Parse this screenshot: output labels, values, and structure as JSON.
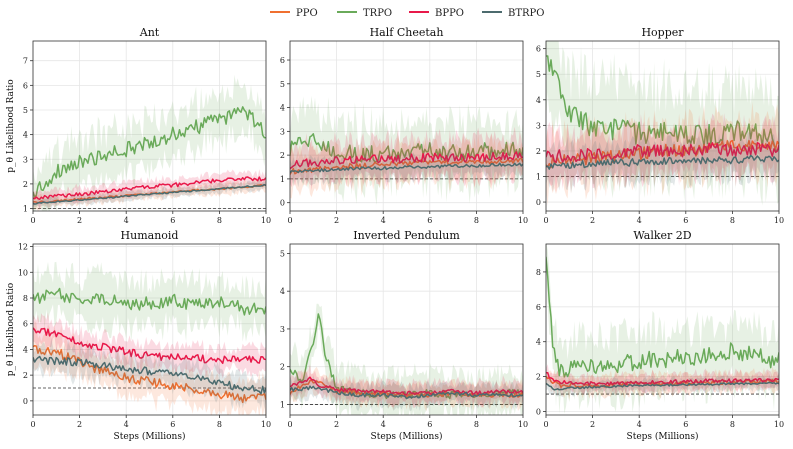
{
  "colors": {
    "PPO": "#f07030",
    "TRPO": "#6aaa5a",
    "BPPO": "#e8194a",
    "BTRPO": "#4c6b6e",
    "grid": "#e6e6e6",
    "axis": "#333333",
    "baseline": "#333333"
  },
  "legend": {
    "position": "top-center",
    "entries": [
      "PPO",
      "TRPO",
      "BPPO",
      "BTRPO"
    ]
  },
  "chart_data": [
    {
      "type": "line",
      "title": "Ant",
      "xlabel": "",
      "ylabel": "p_θ Likelihood Ratio",
      "xlim": [
        0,
        10
      ],
      "ylim": [
        0.9,
        7.8
      ],
      "xticks": [
        0,
        2,
        4,
        6,
        8,
        10
      ],
      "yticks": [
        1,
        2,
        3,
        4,
        5,
        6,
        7
      ],
      "baseline": 1,
      "x": [
        0,
        1,
        2,
        3,
        4,
        5,
        6,
        7,
        8,
        9,
        10
      ],
      "series": [
        {
          "name": "PPO",
          "values": [
            1.25,
            1.3,
            1.38,
            1.45,
            1.52,
            1.6,
            1.67,
            1.74,
            1.8,
            1.87,
            1.95
          ],
          "band": 0.25,
          "noise": 0.04
        },
        {
          "name": "TRPO",
          "values": [
            1.6,
            2.5,
            2.85,
            3.1,
            3.4,
            3.7,
            4.0,
            4.3,
            4.6,
            5.0,
            4.1
          ],
          "band": 1.1,
          "noise": 0.3
        },
        {
          "name": "BPPO",
          "values": [
            1.4,
            1.5,
            1.58,
            1.68,
            1.78,
            1.88,
            1.95,
            2.05,
            2.15,
            2.2,
            2.2
          ],
          "band": 0.3,
          "noise": 0.08
        },
        {
          "name": "BTRPO",
          "values": [
            1.2,
            1.28,
            1.35,
            1.42,
            1.5,
            1.58,
            1.65,
            1.72,
            1.8,
            1.88,
            1.95
          ],
          "band": 0.2,
          "noise": 0.03
        }
      ]
    },
    {
      "type": "line",
      "title": "Half Cheetah",
      "xlabel": "",
      "ylabel": "",
      "xlim": [
        0,
        10
      ],
      "ylim": [
        -0.35,
        6.8
      ],
      "xticks": [
        0,
        2,
        4,
        6,
        8,
        10
      ],
      "yticks": [
        0,
        1,
        2,
        3,
        4,
        5,
        6
      ],
      "baseline": 1,
      "x": [
        0,
        1,
        2,
        3,
        4,
        5,
        6,
        7,
        8,
        9,
        10
      ],
      "series": [
        {
          "name": "PPO",
          "values": [
            1.3,
            1.4,
            1.5,
            1.55,
            1.6,
            1.65,
            1.7,
            1.7,
            1.75,
            1.75,
            1.8
          ],
          "band": 0.9,
          "noise": 0.12
        },
        {
          "name": "TRPO",
          "values": [
            2.3,
            2.6,
            2.2,
            2.0,
            2.1,
            2.1,
            2.2,
            2.1,
            2.2,
            2.2,
            2.2
          ],
          "band": 1.5,
          "noise": 0.35
        },
        {
          "name": "BPPO",
          "values": [
            1.6,
            1.7,
            1.75,
            1.8,
            1.85,
            1.85,
            1.9,
            1.9,
            1.9,
            1.95,
            1.95
          ],
          "band": 0.9,
          "noise": 0.18
        },
        {
          "name": "BTRPO",
          "values": [
            1.3,
            1.35,
            1.4,
            1.45,
            1.45,
            1.5,
            1.5,
            1.55,
            1.55,
            1.6,
            1.6
          ],
          "band": 0.5,
          "noise": 0.06
        }
      ]
    },
    {
      "type": "line",
      "title": "Hopper",
      "xlabel": "",
      "ylabel": "",
      "xlim": [
        0,
        10
      ],
      "ylim": [
        -0.35,
        6.3
      ],
      "xticks": [
        0,
        2,
        4,
        6,
        8,
        10
      ],
      "yticks": [
        0,
        1,
        2,
        3,
        4,
        5,
        6
      ],
      "baseline": 1,
      "x": [
        0,
        1,
        2,
        3,
        4,
        5,
        6,
        7,
        8,
        9,
        10
      ],
      "series": [
        {
          "name": "PPO",
          "values": [
            1.5,
            1.7,
            1.7,
            1.8,
            1.9,
            2.0,
            2.0,
            2.1,
            2.2,
            2.3,
            2.2
          ],
          "band": 1.2,
          "noise": 0.25
        },
        {
          "name": "TRPO",
          "values": [
            5.8,
            3.5,
            2.9,
            2.8,
            2.7,
            2.8,
            2.6,
            2.6,
            2.8,
            2.7,
            2.3
          ],
          "band": 2.0,
          "noise": 0.45
        },
        {
          "name": "BPPO",
          "values": [
            1.8,
            1.8,
            1.9,
            1.9,
            2.0,
            2.0,
            2.0,
            2.1,
            2.0,
            2.1,
            2.0
          ],
          "band": 1.0,
          "noise": 0.25
        },
        {
          "name": "BTRPO",
          "values": [
            1.4,
            1.45,
            1.5,
            1.55,
            1.55,
            1.6,
            1.6,
            1.65,
            1.65,
            1.7,
            1.7
          ],
          "band": 0.8,
          "noise": 0.15
        }
      ]
    },
    {
      "type": "line",
      "title": "Humanoid",
      "xlabel": "Steps (Millions)",
      "ylabel": "p_θ Likelihood Ratio",
      "xlim": [
        0,
        10
      ],
      "ylim": [
        -1.1,
        12.2
      ],
      "xticks": [
        0,
        2,
        4,
        6,
        8,
        10
      ],
      "yticks": [
        0,
        2,
        4,
        6,
        8,
        10,
        12
      ],
      "baseline": 1,
      "x": [
        0,
        1,
        2,
        3,
        4,
        5,
        6,
        7,
        8,
        9,
        10
      ],
      "series": [
        {
          "name": "PPO",
          "values": [
            4.0,
            3.8,
            3.0,
            2.3,
            1.8,
            1.5,
            1.2,
            0.9,
            0.5,
            0.2,
            0.3
          ],
          "band": 1.5,
          "noise": 0.35
        },
        {
          "name": "TRPO",
          "values": [
            8.0,
            8.3,
            7.9,
            8.0,
            7.5,
            7.6,
            7.8,
            7.4,
            7.8,
            7.2,
            7.0
          ],
          "band": 2.0,
          "noise": 0.5
        },
        {
          "name": "BPPO",
          "values": [
            5.5,
            5.2,
            4.5,
            4.2,
            3.8,
            3.5,
            3.4,
            3.3,
            3.2,
            3.2,
            3.2
          ],
          "band": 1.0,
          "noise": 0.3
        },
        {
          "name": "BTRPO",
          "values": [
            3.2,
            3.1,
            3.0,
            2.8,
            2.5,
            2.3,
            2.1,
            1.9,
            1.4,
            1.0,
            0.8
          ],
          "band": 1.2,
          "noise": 0.3
        }
      ]
    },
    {
      "type": "line",
      "title": "Inverted Pendulum",
      "xlabel": "Steps (Millions)",
      "ylabel": "",
      "xlim": [
        0,
        10
      ],
      "ylim": [
        0.72,
        5.25
      ],
      "xticks": [
        0,
        2,
        4,
        6,
        8,
        10
      ],
      "yticks": [
        1,
        2,
        3,
        4,
        5
      ],
      "baseline": 1,
      "x": [
        0,
        0.5,
        1,
        1.25,
        1.5,
        2,
        3,
        4,
        5,
        6,
        7,
        8,
        9,
        10
      ],
      "series": [
        {
          "name": "PPO",
          "values": [
            1.3,
            1.5,
            1.6,
            1.6,
            1.5,
            1.35,
            1.3,
            1.3,
            1.25,
            1.25,
            1.3,
            1.25,
            1.25,
            1.25
          ],
          "band": 0.3,
          "noise": 0.06
        },
        {
          "name": "TRPO",
          "values": [
            2.0,
            1.6,
            2.6,
            3.5,
            2.4,
            1.4,
            1.3,
            1.25,
            1.25,
            1.3,
            1.25,
            1.25,
            1.3,
            1.3
          ],
          "band": 0.6,
          "noise": 0.1
        },
        {
          "name": "BPPO",
          "values": [
            1.5,
            1.6,
            1.7,
            1.5,
            1.5,
            1.4,
            1.35,
            1.35,
            1.3,
            1.3,
            1.35,
            1.3,
            1.35,
            1.35
          ],
          "band": 0.3,
          "noise": 0.05
        },
        {
          "name": "BTRPO",
          "values": [
            1.4,
            1.4,
            1.45,
            1.4,
            1.4,
            1.3,
            1.25,
            1.25,
            1.2,
            1.25,
            1.3,
            1.25,
            1.25,
            1.25
          ],
          "band": 0.3,
          "noise": 0.05
        }
      ]
    },
    {
      "type": "line",
      "title": "Walker 2D",
      "xlabel": "Steps (Millions)",
      "ylabel": "",
      "xlim": [
        0,
        10
      ],
      "ylim": [
        -0.2,
        9.6
      ],
      "xticks": [
        0,
        2,
        4,
        6,
        8,
        10
      ],
      "yticks": [
        0,
        2,
        4,
        6,
        8
      ],
      "baseline": 1,
      "x": [
        0,
        0.3,
        0.6,
        1,
        2,
        3,
        4,
        5,
        6,
        7,
        8,
        9,
        10
      ],
      "series": [
        {
          "name": "PPO",
          "values": [
            2.0,
            1.7,
            1.5,
            1.5,
            1.5,
            1.55,
            1.6,
            1.6,
            1.6,
            1.65,
            1.7,
            1.7,
            1.75
          ],
          "band": 0.6,
          "noise": 0.12
        },
        {
          "name": "TRPO",
          "values": [
            8.8,
            3.5,
            2.2,
            2.4,
            2.5,
            2.7,
            2.9,
            3.0,
            3.1,
            3.2,
            3.5,
            3.2,
            2.9
          ],
          "band": 2.0,
          "noise": 0.5
        },
        {
          "name": "BPPO",
          "values": [
            2.2,
            1.8,
            1.7,
            1.6,
            1.6,
            1.6,
            1.65,
            1.7,
            1.7,
            1.75,
            1.75,
            1.8,
            1.8
          ],
          "band": 0.5,
          "noise": 0.12
        },
        {
          "name": "BTRPO",
          "values": [
            1.6,
            1.3,
            1.3,
            1.35,
            1.4,
            1.45,
            1.5,
            1.5,
            1.55,
            1.55,
            1.6,
            1.6,
            1.65
          ],
          "band": 0.4,
          "noise": 0.06
        }
      ]
    }
  ]
}
